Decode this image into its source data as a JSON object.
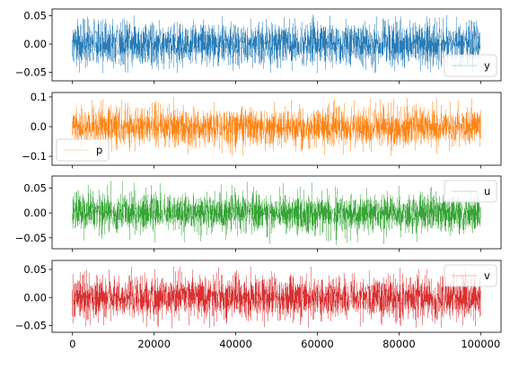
{
  "chart_data": [
    {
      "type": "line",
      "series": [
        {
          "name": "y",
          "color": "#1f77b4",
          "center": 0.0,
          "band": 0.03,
          "spike": 0.052
        }
      ],
      "x": {
        "min": 0,
        "max": 100000,
        "n_points": 100000
      },
      "xlim": [
        -5000,
        105000
      ],
      "ylim": [
        -0.065,
        0.062
      ],
      "yticks": [
        0.05,
        0.0,
        -0.05
      ],
      "ytick_labels": [
        "0.05",
        "0.00",
        "−0.05"
      ],
      "xticks": [
        0,
        20000,
        40000,
        60000,
        80000,
        100000
      ],
      "xtick_labels": [],
      "legend": {
        "entries": [
          "y"
        ],
        "position": "lower right"
      },
      "grid": false
    },
    {
      "type": "line",
      "series": [
        {
          "name": "p",
          "color": "#ff7f0e",
          "center": 0.0,
          "band": 0.05,
          "spike": 0.1
        }
      ],
      "x": {
        "min": 0,
        "max": 100000,
        "n_points": 100000
      },
      "xlim": [
        -5000,
        105000
      ],
      "ylim": [
        -0.13,
        0.115
      ],
      "yticks": [
        0.1,
        0.0,
        -0.1
      ],
      "ytick_labels": [
        "0.1",
        "0.0",
        "−0.1"
      ],
      "xticks": [
        0,
        20000,
        40000,
        60000,
        80000,
        100000
      ],
      "xtick_labels": [],
      "legend": {
        "entries": [
          "p"
        ],
        "position": "lower left"
      },
      "grid": false
    },
    {
      "type": "line",
      "series": [
        {
          "name": "u",
          "color": "#2ca02c",
          "center": 0.0,
          "band": 0.03,
          "spike": 0.065
        }
      ],
      "x": {
        "min": 0,
        "max": 100000,
        "n_points": 100000
      },
      "xlim": [
        -5000,
        105000
      ],
      "ylim": [
        -0.072,
        0.074
      ],
      "yticks": [
        0.05,
        0.0,
        -0.05
      ],
      "ytick_labels": [
        "0.05",
        "0.00",
        "−0.05"
      ],
      "xticks": [
        0,
        20000,
        40000,
        60000,
        80000,
        100000
      ],
      "xtick_labels": [],
      "legend": {
        "entries": [
          "u"
        ],
        "position": "upper right"
      },
      "grid": false
    },
    {
      "type": "line",
      "series": [
        {
          "name": "v",
          "color": "#d62728",
          "center": 0.0,
          "band": 0.03,
          "spike": 0.055
        }
      ],
      "x": {
        "min": 0,
        "max": 100000,
        "n_points": 100000
      },
      "xlim": [
        -5000,
        105000
      ],
      "ylim": [
        -0.062,
        0.066
      ],
      "yticks": [
        0.05,
        0.0,
        -0.05
      ],
      "ytick_labels": [
        "0.05",
        "0.00",
        "−0.05"
      ],
      "xticks": [
        0,
        20000,
        40000,
        60000,
        80000,
        100000
      ],
      "xtick_labels": [
        "0",
        "20000",
        "40000",
        "60000",
        "80000",
        "100000"
      ],
      "legend": {
        "entries": [
          "v"
        ],
        "position": "upper right"
      },
      "grid": false
    }
  ]
}
